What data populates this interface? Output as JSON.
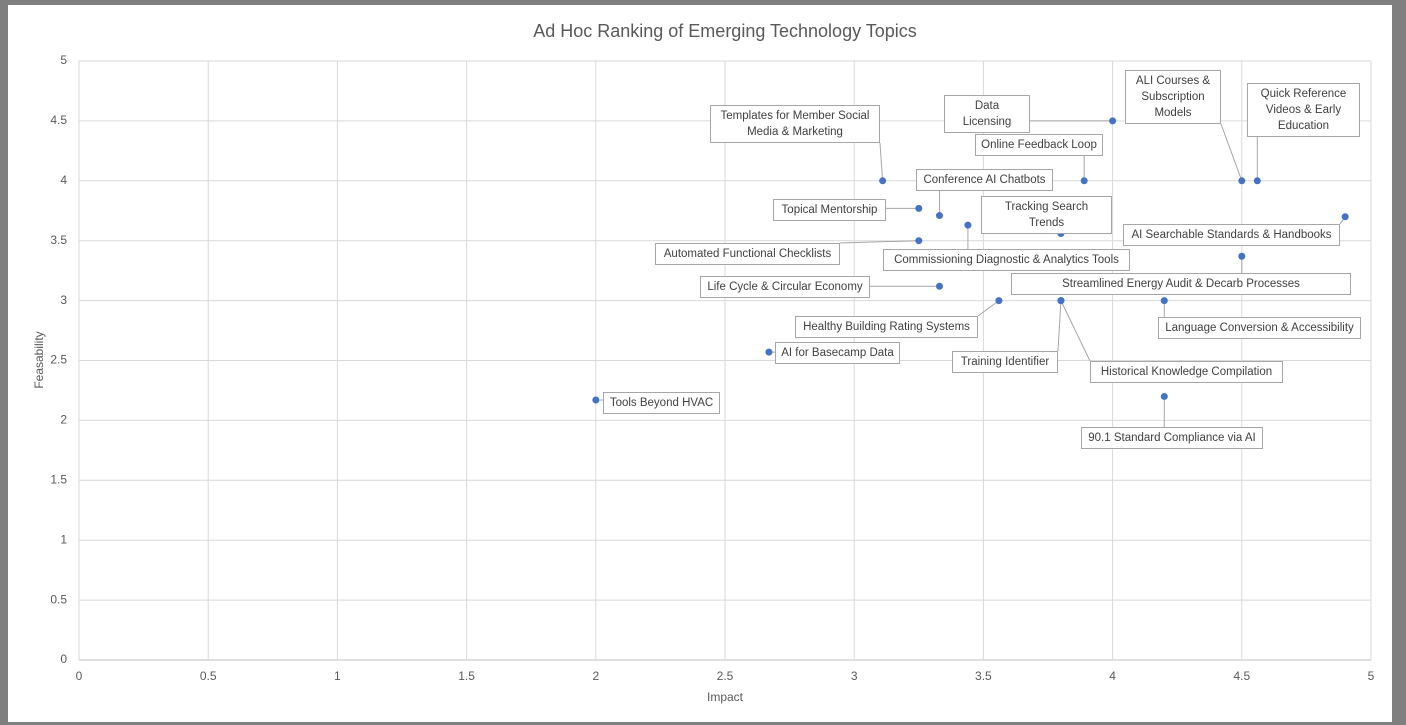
{
  "chart_data": {
    "type": "scatter",
    "title": "Ad Hoc Ranking of Emerging Technology Topics",
    "x_label": "Impact",
    "y_label": "Feasability",
    "color": "#4472c4",
    "grid": true,
    "xlim": [
      0,
      5
    ],
    "ylim": [
      0,
      5
    ],
    "xticks": [
      0,
      0.5,
      1,
      1.5,
      2,
      2.5,
      3,
      3.5,
      4,
      4.5,
      5
    ],
    "yticks": [
      0,
      0.5,
      1,
      1.5,
      2,
      2.5,
      3,
      3.5,
      4,
      4.5,
      5
    ],
    "labels": [
      "Data Licensing",
      "ALI Courses & Subscription Models",
      "Quick Reference Videos & Early Education",
      "Templates for Member Social Media & Marketing",
      "Online Feedback Loop",
      "Conference AI Chatbots",
      "Topical Mentorship",
      "Tracking Search Trends",
      "AI Searchable Standards & Handbooks",
      "Automated Functional Checklists",
      "Commissioning Diagnostic & Analytics Tools",
      "Streamlined Energy Audit & Decarb Processes",
      "Life Cycle & Circular Economy",
      "Healthy Building Rating Systems",
      "Training Identifier",
      "Historical Knowledge Compilation",
      "Language Conversion & Accessibility",
      "AI for Basecamp Data",
      "Tools Beyond HVAC",
      "90.1 Standard Compliance via AI"
    ],
    "x": [
      4.0,
      4.5,
      4.56,
      3.11,
      3.89,
      3.33,
      3.25,
      3.8,
      4.9,
      3.25,
      3.44,
      4.5,
      3.33,
      3.56,
      3.8,
      3.8,
      4.2,
      2.67,
      2.0,
      4.2
    ],
    "values": [
      4.5,
      4.0,
      4.0,
      4.0,
      4.0,
      3.71,
      3.77,
      3.56,
      3.7,
      3.5,
      3.63,
      3.37,
      3.12,
      3.0,
      3.0,
      3.0,
      3.0,
      2.57,
      2.17,
      2.2
    ]
  }
}
